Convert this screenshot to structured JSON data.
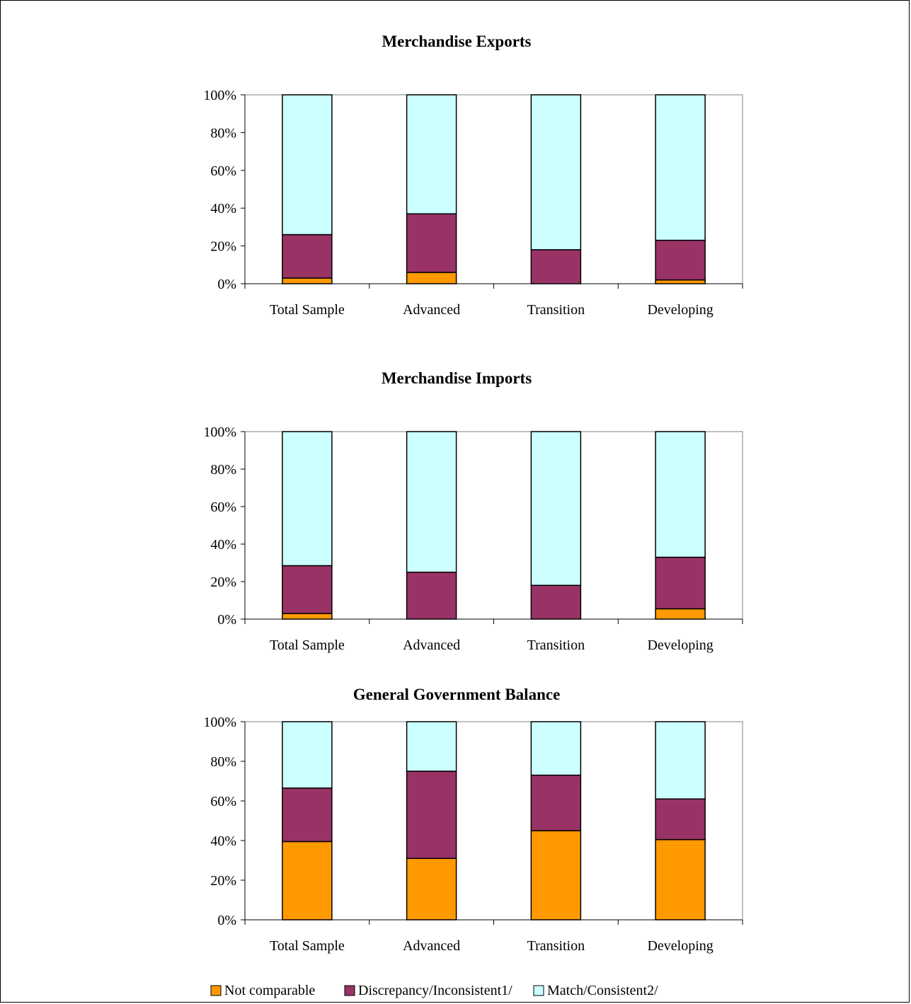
{
  "colors": {
    "not_comparable": "#FF9900",
    "discrepancy": "#993366",
    "match": "#CCFFFF"
  },
  "legend": {
    "items": [
      {
        "label": "Not comparable",
        "color": "#FF9900"
      },
      {
        "label": "Discrepancy/Inconsistent1/",
        "color": "#993366"
      },
      {
        "label": "Match/Consistent2/",
        "color": "#CCFFFF"
      }
    ]
  },
  "chart_data": [
    {
      "type": "bar",
      "stacked": true,
      "title": "Merchandise Exports",
      "categories": [
        "Total Sample",
        "Advanced",
        "Transition",
        "Developing"
      ],
      "ylim": [
        0,
        100
      ],
      "yticks": [
        "0%",
        "20%",
        "40%",
        "60%",
        "80%",
        "100%"
      ],
      "series": [
        {
          "name": "Not comparable",
          "values": [
            3,
            6,
            0,
            2
          ]
        },
        {
          "name": "Discrepancy/Inconsistent1/",
          "values": [
            23,
            31,
            18,
            21
          ]
        },
        {
          "name": "Match/Consistent2/",
          "values": [
            74,
            63,
            82,
            77
          ]
        }
      ]
    },
    {
      "type": "bar",
      "stacked": true,
      "title": "Merchandise Imports",
      "categories": [
        "Total Sample",
        "Advanced",
        "Transition",
        "Developing"
      ],
      "ylim": [
        0,
        100
      ],
      "yticks": [
        "0%",
        "20%",
        "40%",
        "60%",
        "80%",
        "100%"
      ],
      "series": [
        {
          "name": "Not comparable",
          "values": [
            3,
            0,
            0,
            5.5
          ]
        },
        {
          "name": "Discrepancy/Inconsistent1/",
          "values": [
            25.5,
            25,
            18,
            27.5
          ]
        },
        {
          "name": "Match/Consistent2/",
          "values": [
            71.5,
            75,
            82,
            67
          ]
        }
      ]
    },
    {
      "type": "bar",
      "stacked": true,
      "title": "General Government Balance",
      "categories": [
        "Total Sample",
        "Advanced",
        "Transition",
        "Developing"
      ],
      "ylim": [
        0,
        100
      ],
      "yticks": [
        "0%",
        "20%",
        "40%",
        "60%",
        "80%",
        "100%"
      ],
      "series": [
        {
          "name": "Not comparable",
          "values": [
            39.5,
            31,
            45,
            40.5
          ]
        },
        {
          "name": "Discrepancy/Inconsistent1/",
          "values": [
            27,
            44,
            28,
            20.5
          ]
        },
        {
          "name": "Match/Consistent2/",
          "values": [
            33.5,
            25,
            27,
            39
          ]
        }
      ]
    }
  ]
}
